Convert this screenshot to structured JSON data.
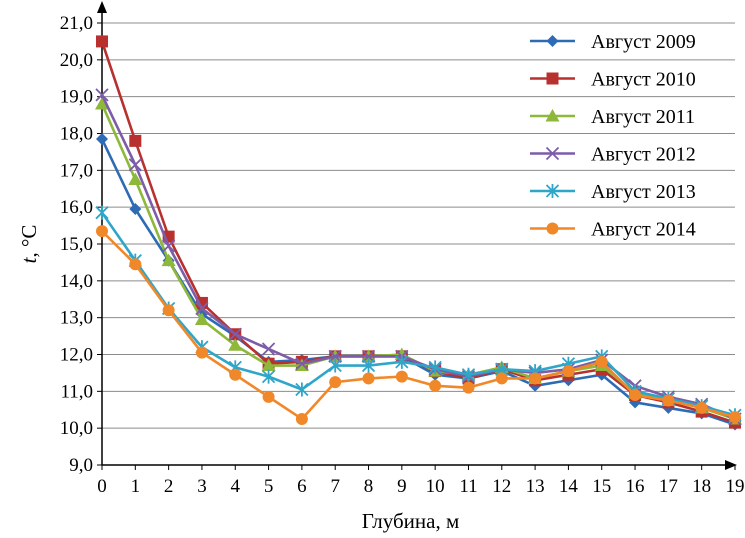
{
  "chart_data": {
    "type": "line",
    "xlabel": "Глубина, м",
    "ylabel_italic": "t",
    "ylabel_rest": ", °C",
    "xlim": [
      0,
      19
    ],
    "ylim": [
      9,
      21
    ],
    "y_step": 1,
    "x": [
      0,
      1,
      2,
      3,
      4,
      5,
      6,
      7,
      8,
      9,
      10,
      11,
      12,
      13,
      14,
      15,
      16,
      17,
      18,
      19
    ],
    "x_tick_labels": [
      "0",
      "1",
      "2",
      "3",
      "4",
      "5",
      "6",
      "7",
      "8",
      "9",
      "10",
      "11",
      "12",
      "13",
      "14",
      "15",
      "16",
      "17",
      "18",
      "19"
    ],
    "y_tick_labels": [
      "9,0",
      "10,0",
      "11,0",
      "12,0",
      "13,0",
      "14,0",
      "15,0",
      "16,0",
      "17,0",
      "18,0",
      "19,0",
      "20,0",
      "21,0"
    ],
    "grid": "horizontal",
    "legend_position": "top-right",
    "series": [
      {
        "name": "Август 2009",
        "color": "#2e6bb5",
        "marker": "diamond",
        "values": [
          17.85,
          15.95,
          14.55,
          13.1,
          12.5,
          11.8,
          11.85,
          11.95,
          11.95,
          11.95,
          11.45,
          11.35,
          11.55,
          11.15,
          11.3,
          11.45,
          10.7,
          10.55,
          10.4,
          10.1
        ]
      },
      {
        "name": "Август 2010",
        "color": "#b8312f",
        "marker": "square",
        "values": [
          20.5,
          17.8,
          15.2,
          13.4,
          12.55,
          11.75,
          11.8,
          11.95,
          11.95,
          11.95,
          11.55,
          11.35,
          11.6,
          11.3,
          11.45,
          11.6,
          10.9,
          10.7,
          10.45,
          10.15
        ]
      },
      {
        "name": "Август 2011",
        "color": "#8db83a",
        "marker": "triangle",
        "values": [
          18.8,
          16.75,
          14.55,
          12.95,
          12.25,
          11.7,
          11.7,
          11.95,
          11.95,
          12.0,
          11.55,
          11.45,
          11.65,
          11.35,
          11.55,
          11.7,
          10.95,
          10.75,
          10.55,
          10.25
        ]
      },
      {
        "name": "Август 2012",
        "color": "#7d5ca8",
        "marker": "x",
        "values": [
          19.05,
          17.15,
          14.95,
          13.25,
          12.55,
          12.15,
          11.75,
          11.95,
          11.95,
          11.95,
          11.6,
          11.4,
          11.6,
          11.5,
          11.6,
          11.85,
          11.15,
          10.85,
          10.65,
          10.25
        ]
      },
      {
        "name": "Август 2013",
        "color": "#2fa6c8",
        "marker": "asterisk",
        "values": [
          15.85,
          14.55,
          13.25,
          12.2,
          11.65,
          11.4,
          11.05,
          11.7,
          11.7,
          11.8,
          11.65,
          11.45,
          11.6,
          11.55,
          11.75,
          11.95,
          11.0,
          10.8,
          10.6,
          10.35
        ]
      },
      {
        "name": "Август 2014",
        "color": "#f0882a",
        "marker": "circle",
        "values": [
          15.35,
          14.45,
          13.2,
          12.05,
          11.45,
          10.85,
          10.25,
          11.25,
          11.35,
          11.4,
          11.15,
          11.1,
          11.35,
          11.35,
          11.55,
          11.8,
          10.9,
          10.75,
          10.55,
          10.3
        ]
      }
    ]
  }
}
